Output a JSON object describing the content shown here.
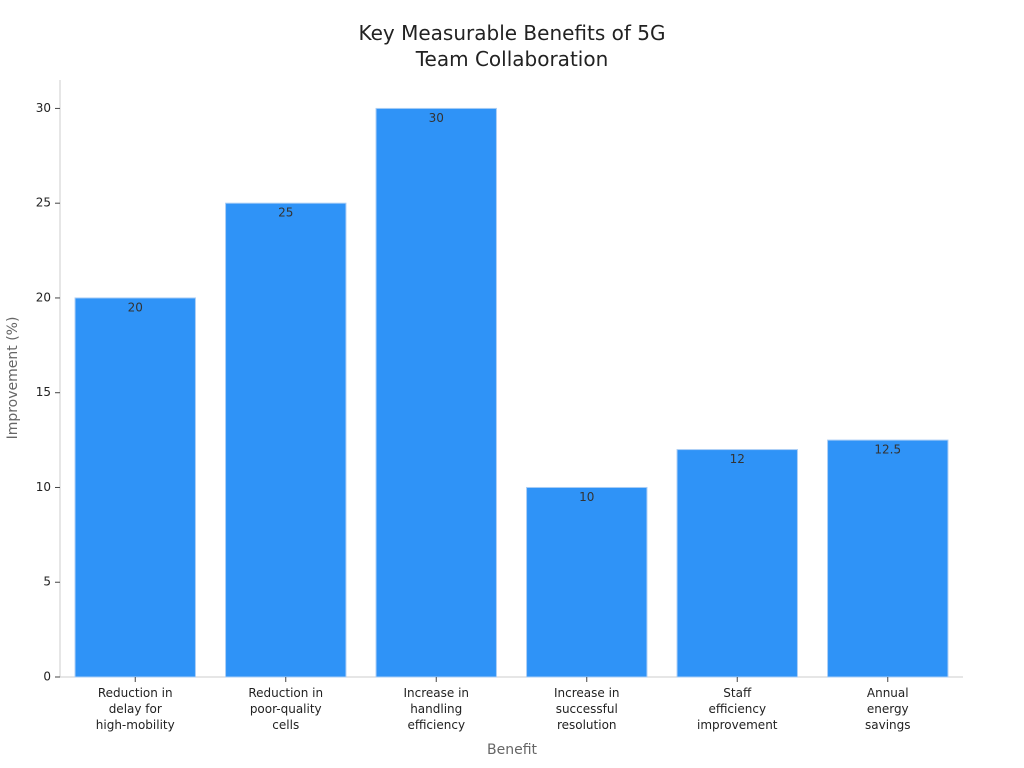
{
  "chart_data": {
    "type": "bar",
    "title": "Key Measurable Benefits of 5G\nTeam Collaboration",
    "x_label": "Benefit",
    "y_label": "Improvement (%)",
    "categories": [
      "Reduction in\ndelay for\nhigh-mobility",
      "Reduction in\npoor-quality\ncells",
      "Increase in\nhandling\nefficiency",
      "Increase in\nsuccessful\nresolution",
      "Staff\nefficiency\nimprovement",
      "Annual\nenergy\nsavings"
    ],
    "values": [
      20,
      25,
      30,
      10,
      12,
      12.5
    ],
    "color": "#2f93f7",
    "ylim": [
      0,
      31.5
    ],
    "yticks": [
      0,
      5,
      10,
      15,
      20,
      25,
      30
    ],
    "grid": false
  }
}
